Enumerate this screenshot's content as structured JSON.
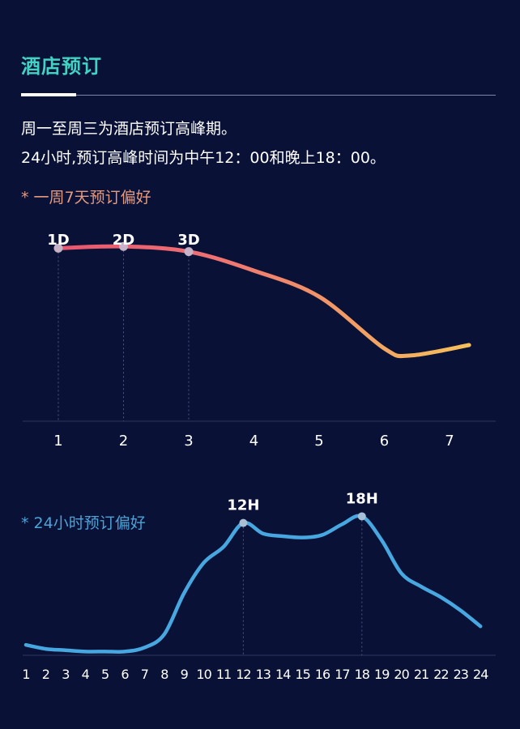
{
  "header": {
    "title": "酒店预订",
    "line1": "周一至周三为酒店预订高峰期。",
    "line2": "24小时,预订高峰时间为中午12：00和晚上18：00。"
  },
  "colors": {
    "title": "#3fd3c4",
    "week_start": "#e8566f",
    "week_end": "#f5c15a",
    "hour_line": "#47a7e0",
    "background": "#0a1136"
  },
  "chart_data": [
    {
      "type": "line",
      "label": "* 一周7天预订偏好",
      "x": [
        1,
        2,
        3,
        4,
        5,
        6,
        6.4,
        7.3
      ],
      "y": [
        100,
        101,
        98,
        87,
        72,
        42,
        38,
        44
      ],
      "categories": [
        "1",
        "2",
        "3",
        "4",
        "5",
        "6",
        "7"
      ],
      "ylim": [
        0,
        110
      ],
      "annotations": [
        {
          "x": 1,
          "text": "1D"
        },
        {
          "x": 2,
          "text": "2D"
        },
        {
          "x": 3,
          "text": "3D"
        }
      ],
      "grid": false
    },
    {
      "type": "line",
      "label": "* 24小时预订偏好",
      "x": [
        1,
        2,
        3,
        4,
        5,
        6,
        7,
        8,
        9,
        10,
        11,
        12,
        13,
        14,
        15,
        16,
        17,
        18,
        19,
        20,
        21,
        22,
        23,
        24
      ],
      "y": [
        6,
        3,
        2,
        1,
        1,
        1,
        4,
        14,
        45,
        68,
        80,
        98,
        90,
        88,
        87,
        89,
        97,
        103,
        85,
        60,
        50,
        42,
        32,
        20
      ],
      "categories": [
        "1",
        "2",
        "3",
        "4",
        "5",
        "6",
        "7",
        "8",
        "9",
        "10",
        "11",
        "12",
        "13",
        "14",
        "15",
        "16",
        "17",
        "18",
        "19",
        "20",
        "21",
        "22",
        "23",
        "24"
      ],
      "ylim": [
        0,
        110
      ],
      "annotations": [
        {
          "x": 12,
          "text": "12H"
        },
        {
          "x": 18,
          "text": "18H"
        }
      ],
      "grid": false
    }
  ]
}
